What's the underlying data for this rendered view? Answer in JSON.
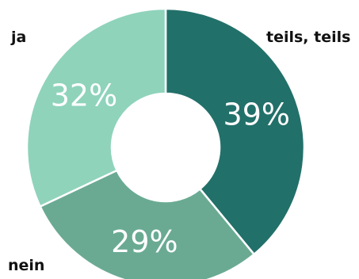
{
  "chart_data": {
    "type": "pie",
    "donut": true,
    "categories": [
      "teils, teils",
      "nein",
      "ja"
    ],
    "values": [
      39,
      29,
      32
    ],
    "value_labels": [
      "39%",
      "29%",
      "32%"
    ],
    "colors": [
      "#22706a",
      "#6aaa93",
      "#8fd3bb"
    ],
    "legend": "none",
    "title": ""
  }
}
